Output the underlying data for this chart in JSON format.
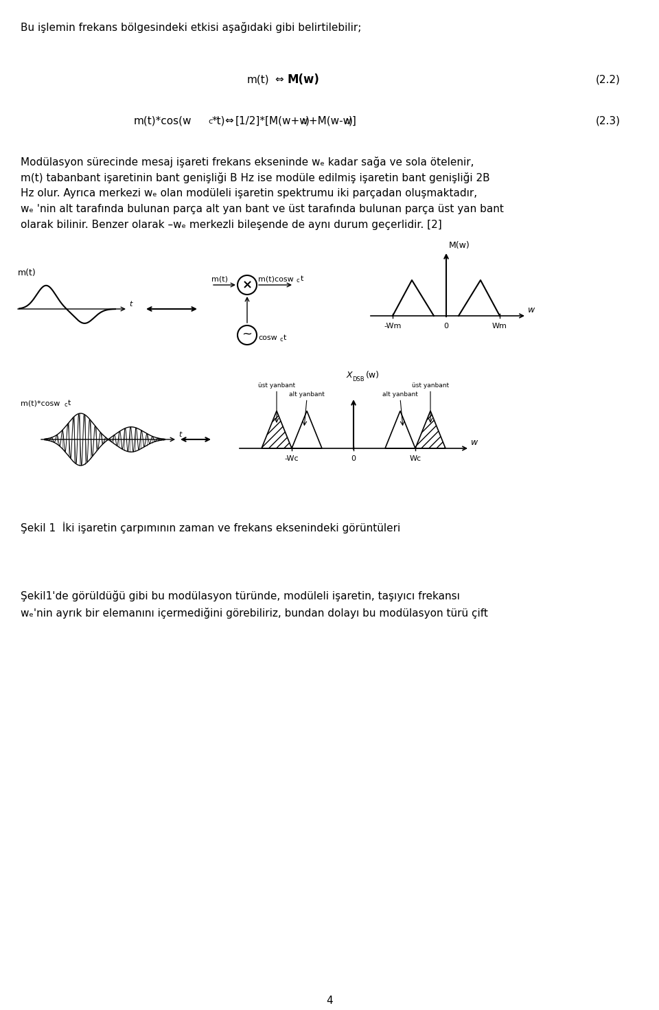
{
  "bg_color": "#ffffff",
  "page_width": 9.6,
  "page_height": 14.71,
  "text_color": "#000000",
  "line1": "Bu işlemin frekans bölgesindeki etkisi aşağıdaki gibi belirtilebilir;",
  "eq1_num": "(2.2)",
  "eq2_num": "(2.3)",
  "caption": "Şekil 1  İki işaretin çarpımının zaman ve frekans eksenindeki görüntüleri",
  "para2_line1": "Şekil1'de görüldüğü gibi bu modülasyon türünde, modüleli işaretin, taşıyıcı frekansı",
  "para2_line2": "wₑ'nin ayrık bir elemanını içermediğini görebiliriz, bundan dolayı bu modülasyon türü çift",
  "page_num": "4",
  "para1_lines": [
    "Modülasyon sürecinde mesaj işareti frekans ekseninde wₑ kadar sağa ve sola ötelenir,",
    "m(t) tabanbant işaretinin bant genişliği B Hz ise modüle edilmiş işaretin bant genişliği 2B",
    "Hz olur. Ayrıca merkezi wₑ olan modüleli işaretin spektrumu iki parçadan oluşmaktadır,",
    "wₑ 'nin alt tarafında bulunan parça alt yan bant ve üst tarafında bulunan parça üst yan bant",
    "olarak bilinir. Benzer olarak –wₑ merkezli bileşende de aynı durum geçerlidir. [2]"
  ]
}
